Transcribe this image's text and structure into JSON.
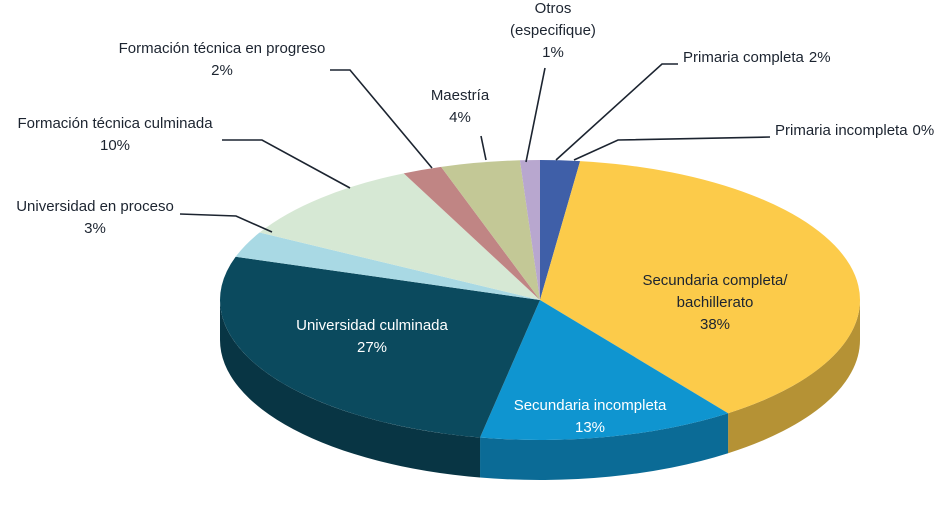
{
  "chart_data": {
    "type": "pie3d",
    "categories": [
      "Primaria completa",
      "Primaria incompleta",
      "Secundaria completa/\nbachillerato",
      "Secundaria incompleta",
      "Universidad culminada",
      "Universidad en proceso",
      "Formación técnica culminada",
      "Formación técnica en progreso",
      "Maestría",
      "Otros\n(especifique)"
    ],
    "values": [
      2,
      0,
      38,
      13,
      27,
      3,
      10,
      2,
      4,
      1
    ],
    "value_labels": [
      "2%",
      "0%",
      "38%",
      "13%",
      "27%",
      "3%",
      "10%",
      "2%",
      "4%",
      "1%"
    ],
    "colors": [
      "#3f5fa8",
      "#a33b3b",
      "#fccb4a",
      "#0f95d0",
      "#0b4a5e",
      "#a9d9e4",
      "#d6e8d4",
      "#c08584",
      "#c3c896",
      "#b8a7cf"
    ]
  }
}
